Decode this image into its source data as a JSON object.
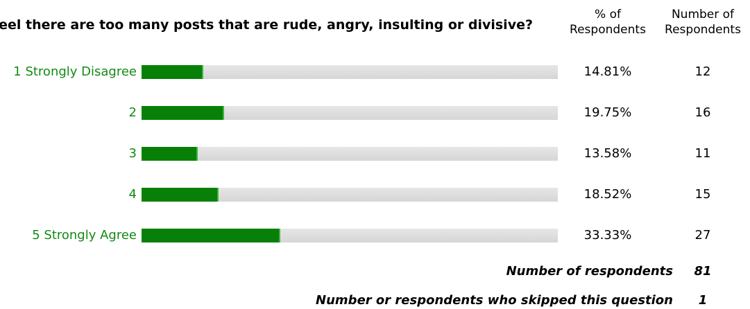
{
  "question": "Do you feel there are too many posts that are rude, angry, insulting or divisive?",
  "headers": {
    "percent": [
      "% of",
      "Respondents"
    ],
    "count": [
      "Number of",
      "Respondents"
    ]
  },
  "colors": {
    "label_text": "#138a13",
    "bar_fill": "#088008",
    "bar_track": "#dcdcdc"
  },
  "chart_data": {
    "type": "bar",
    "orientation": "horizontal",
    "categories": [
      "1 Strongly Disagree",
      "2",
      "3",
      "4",
      "5 Strongly Agree"
    ],
    "values": [
      14.81,
      19.75,
      13.58,
      18.52,
      33.33
    ],
    "value_labels": [
      "14.81%",
      "19.75%",
      "13.58%",
      "18.52%",
      "33.33%"
    ],
    "counts": [
      12,
      16,
      11,
      15,
      27
    ],
    "xlim": [
      0,
      100
    ]
  },
  "summary": {
    "respondents_label": "Number of respondents",
    "respondents_value": "81",
    "skipped_label": "Number or respondents who skipped this question",
    "skipped_value": "1"
  }
}
